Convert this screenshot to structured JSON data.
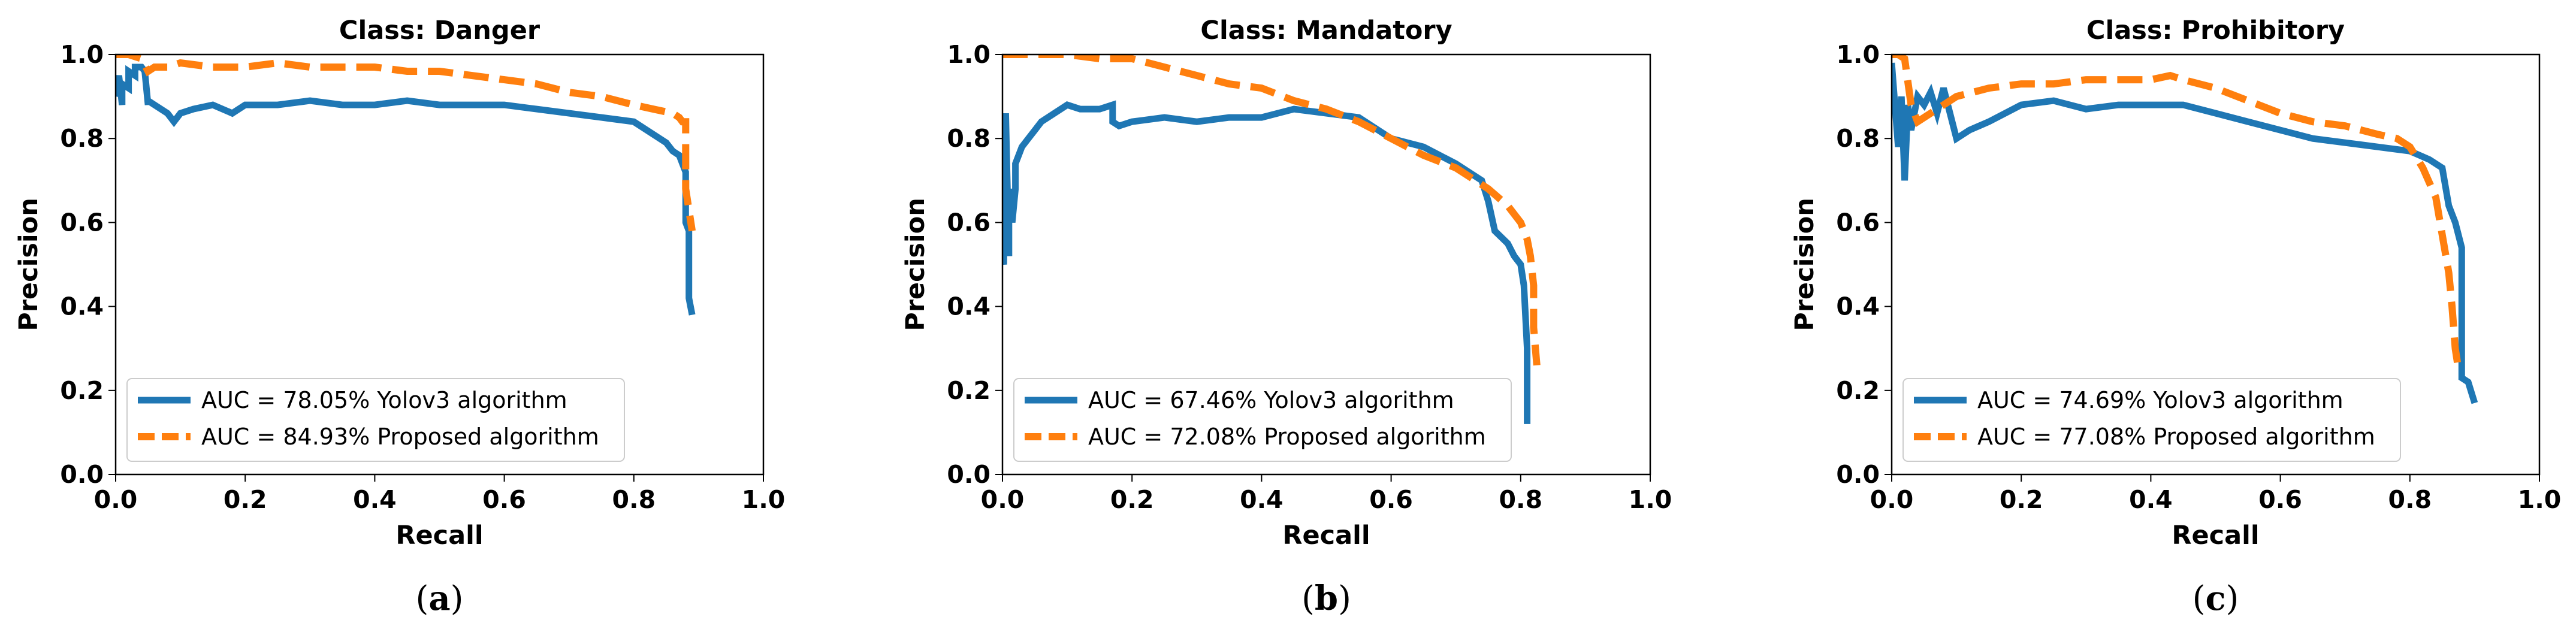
{
  "chart_data": [
    {
      "type": "line",
      "title": "Class: Danger",
      "caption_letter": "a",
      "xlabel": "Recall",
      "ylabel": "Precision",
      "xlim": [
        0.0,
        1.0
      ],
      "ylim": [
        0.0,
        1.0
      ],
      "xticks": [
        "0.0",
        "0.2",
        "0.4",
        "0.6",
        "0.8",
        "1.0"
      ],
      "yticks": [
        "0.0",
        "0.2",
        "0.4",
        "0.6",
        "0.8",
        "1.0"
      ],
      "legend_position": "lower-left",
      "series": [
        {
          "name": "AUC = 78.05% Yolov3 algorithm",
          "color": "#1f77b4",
          "style": "solid",
          "x": [
            0.0,
            0.005,
            0.01,
            0.01,
            0.02,
            0.02,
            0.03,
            0.03,
            0.04,
            0.045,
            0.05,
            0.05,
            0.06,
            0.07,
            0.08,
            0.09,
            0.1,
            0.12,
            0.15,
            0.18,
            0.2,
            0.25,
            0.3,
            0.35,
            0.4,
            0.45,
            0.5,
            0.55,
            0.6,
            0.65,
            0.7,
            0.75,
            0.8,
            0.83,
            0.85,
            0.86,
            0.87,
            0.875,
            0.88,
            0.88,
            0.885,
            0.885,
            0.89
          ],
          "y": [
            0.9,
            0.95,
            0.88,
            0.93,
            0.92,
            0.96,
            0.95,
            0.97,
            0.97,
            0.96,
            0.88,
            0.89,
            0.88,
            0.87,
            0.86,
            0.84,
            0.86,
            0.87,
            0.88,
            0.86,
            0.88,
            0.88,
            0.89,
            0.88,
            0.88,
            0.89,
            0.88,
            0.88,
            0.88,
            0.87,
            0.86,
            0.85,
            0.84,
            0.81,
            0.79,
            0.77,
            0.76,
            0.74,
            0.72,
            0.6,
            0.58,
            0.42,
            0.38
          ]
        },
        {
          "name": "AUC = 84.93% Proposed algorithm",
          "color": "#ff7f0e",
          "style": "dashed",
          "x": [
            0.0,
            0.02,
            0.04,
            0.05,
            0.06,
            0.08,
            0.1,
            0.15,
            0.2,
            0.25,
            0.3,
            0.35,
            0.4,
            0.45,
            0.5,
            0.55,
            0.6,
            0.65,
            0.7,
            0.75,
            0.8,
            0.83,
            0.86,
            0.87,
            0.875,
            0.88,
            0.88,
            0.89
          ],
          "y": [
            1.0,
            1.0,
            0.99,
            0.96,
            0.97,
            0.97,
            0.98,
            0.97,
            0.97,
            0.98,
            0.97,
            0.97,
            0.97,
            0.96,
            0.96,
            0.95,
            0.94,
            0.93,
            0.91,
            0.9,
            0.88,
            0.87,
            0.86,
            0.85,
            0.84,
            0.84,
            0.68,
            0.58
          ]
        }
      ]
    },
    {
      "type": "line",
      "title": "Class: Mandatory",
      "caption_letter": "b",
      "xlabel": "Recall",
      "ylabel": "Precision",
      "xlim": [
        0.0,
        1.0
      ],
      "ylim": [
        0.0,
        1.0
      ],
      "xticks": [
        "0.0",
        "0.2",
        "0.4",
        "0.6",
        "0.8",
        "1.0"
      ],
      "yticks": [
        "0.0",
        "0.2",
        "0.4",
        "0.6",
        "0.8",
        "1.0"
      ],
      "legend_position": "lower-left",
      "series": [
        {
          "name": "AUC = 67.46% Yolov3 algorithm",
          "color": "#1f77b4",
          "style": "solid",
          "x": [
            0.0,
            0.002,
            0.005,
            0.01,
            0.01,
            0.015,
            0.02,
            0.02,
            0.03,
            0.04,
            0.05,
            0.06,
            0.08,
            0.1,
            0.12,
            0.15,
            0.17,
            0.17,
            0.18,
            0.2,
            0.25,
            0.3,
            0.35,
            0.4,
            0.45,
            0.5,
            0.55,
            0.6,
            0.65,
            0.7,
            0.74,
            0.75,
            0.76,
            0.78,
            0.79,
            0.8,
            0.805,
            0.81,
            0.81
          ],
          "y": [
            0.52,
            0.5,
            0.86,
            0.52,
            0.68,
            0.6,
            0.68,
            0.74,
            0.78,
            0.8,
            0.82,
            0.84,
            0.86,
            0.88,
            0.87,
            0.87,
            0.88,
            0.84,
            0.83,
            0.84,
            0.85,
            0.84,
            0.85,
            0.85,
            0.87,
            0.86,
            0.85,
            0.8,
            0.78,
            0.74,
            0.7,
            0.65,
            0.58,
            0.55,
            0.52,
            0.5,
            0.45,
            0.3,
            0.12
          ]
        },
        {
          "name": "AUC = 72.08% Proposed algorithm",
          "color": "#ff7f0e",
          "style": "dashed",
          "x": [
            0.0,
            0.05,
            0.1,
            0.15,
            0.2,
            0.25,
            0.3,
            0.35,
            0.4,
            0.45,
            0.5,
            0.55,
            0.6,
            0.65,
            0.7,
            0.75,
            0.78,
            0.8,
            0.81,
            0.815,
            0.82,
            0.82,
            0.825
          ],
          "y": [
            1.0,
            1.0,
            1.0,
            0.99,
            0.99,
            0.97,
            0.95,
            0.93,
            0.92,
            0.89,
            0.87,
            0.84,
            0.8,
            0.76,
            0.73,
            0.68,
            0.64,
            0.6,
            0.56,
            0.52,
            0.45,
            0.35,
            0.26
          ]
        }
      ]
    },
    {
      "type": "line",
      "title": "Class: Prohibitory",
      "caption_letter": "c",
      "xlabel": "Recall",
      "ylabel": "Precision",
      "xlim": [
        0.0,
        1.0
      ],
      "ylim": [
        0.0,
        1.0
      ],
      "xticks": [
        "0.0",
        "0.2",
        "0.4",
        "0.6",
        "0.8",
        "1.0"
      ],
      "yticks": [
        "0.0",
        "0.2",
        "0.4",
        "0.6",
        "0.8",
        "1.0"
      ],
      "legend_position": "lower-left",
      "series": [
        {
          "name": "AUC = 74.69% Yolov3 algorithm",
          "color": "#1f77b4",
          "style": "solid",
          "x": [
            0.0,
            0.01,
            0.015,
            0.02,
            0.025,
            0.03,
            0.04,
            0.05,
            0.06,
            0.07,
            0.08,
            0.09,
            0.1,
            0.12,
            0.15,
            0.2,
            0.25,
            0.3,
            0.35,
            0.4,
            0.45,
            0.5,
            0.55,
            0.6,
            0.65,
            0.7,
            0.75,
            0.8,
            0.83,
            0.85,
            0.86,
            0.87,
            0.88,
            0.88,
            0.89,
            0.9
          ],
          "y": [
            0.98,
            0.78,
            0.9,
            0.7,
            0.88,
            0.82,
            0.9,
            0.88,
            0.91,
            0.86,
            0.92,
            0.86,
            0.8,
            0.82,
            0.84,
            0.88,
            0.89,
            0.87,
            0.88,
            0.88,
            0.88,
            0.86,
            0.84,
            0.82,
            0.8,
            0.79,
            0.78,
            0.77,
            0.75,
            0.73,
            0.64,
            0.6,
            0.54,
            0.23,
            0.22,
            0.17
          ]
        },
        {
          "name": "AUC = 77.08% Proposed algorithm",
          "color": "#ff7f0e",
          "style": "dashed",
          "x": [
            0.0,
            0.01,
            0.02,
            0.03,
            0.04,
            0.06,
            0.08,
            0.1,
            0.15,
            0.2,
            0.25,
            0.3,
            0.35,
            0.4,
            0.43,
            0.45,
            0.5,
            0.55,
            0.6,
            0.65,
            0.7,
            0.75,
            0.78,
            0.8,
            0.82,
            0.84,
            0.85,
            0.86,
            0.865,
            0.87,
            0.875
          ],
          "y": [
            1.0,
            1.0,
            0.99,
            0.88,
            0.84,
            0.86,
            0.88,
            0.9,
            0.92,
            0.93,
            0.93,
            0.94,
            0.94,
            0.94,
            0.95,
            0.94,
            0.92,
            0.89,
            0.86,
            0.84,
            0.83,
            0.81,
            0.8,
            0.78,
            0.73,
            0.66,
            0.57,
            0.48,
            0.4,
            0.3,
            0.25
          ]
        }
      ]
    }
  ]
}
